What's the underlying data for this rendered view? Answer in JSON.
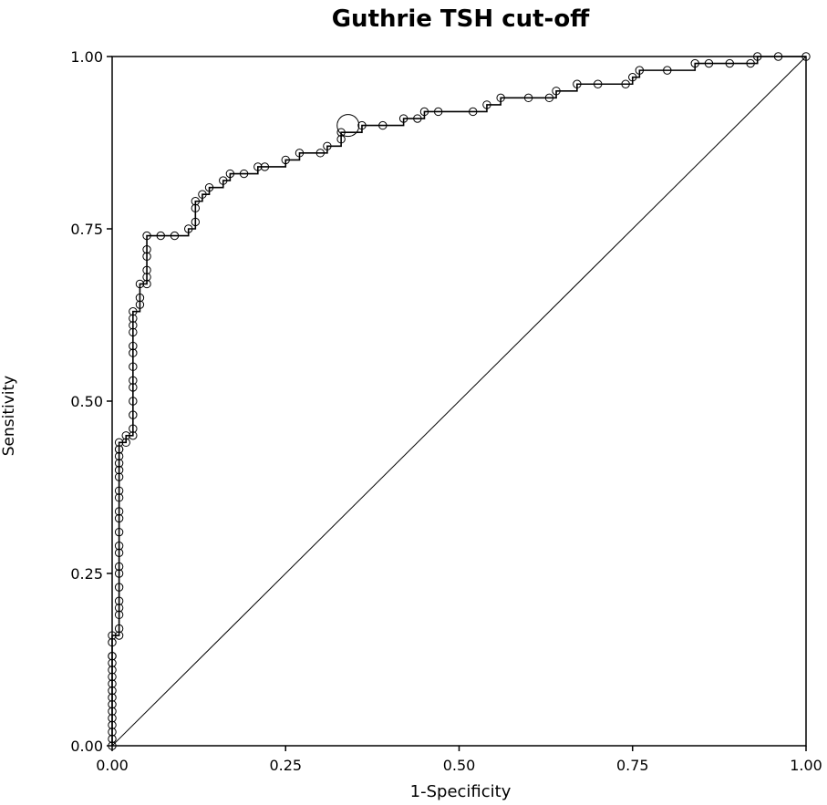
{
  "chart_data": {
    "type": "line",
    "title": "Guthrie TSH cut-off",
    "xlabel": "1-Specificity",
    "ylabel": "Sensitivity",
    "xlim": [
      0,
      1
    ],
    "ylim": [
      0,
      1
    ],
    "x_ticks": [
      "0.00",
      "0.25",
      "0.50",
      "0.75",
      "1.00"
    ],
    "y_ticks": [
      "0.00",
      "0.25",
      "0.50",
      "0.75",
      "1.00"
    ],
    "grid": false,
    "legend": "none",
    "marker": "open-circle",
    "highlighted_point": {
      "x": 0.34,
      "y": 0.9
    },
    "reference_line": {
      "x": [
        0,
        1
      ],
      "y": [
        0,
        1
      ]
    },
    "series": [
      {
        "x": [
          0.0,
          0.0,
          0.0,
          0.0,
          0.0,
          0.0,
          0.0,
          0.0,
          0.0,
          0.0,
          0.0,
          0.0,
          0.0,
          0.0,
          0.0,
          0.0,
          0.0,
          0.01,
          0.01,
          0.01,
          0.01,
          0.01,
          0.01,
          0.01,
          0.01,
          0.01,
          0.01,
          0.01,
          0.01,
          0.01,
          0.01,
          0.01,
          0.01,
          0.01,
          0.01,
          0.01,
          0.01,
          0.01,
          0.01,
          0.02,
          0.02,
          0.03,
          0.03,
          0.03,
          0.03,
          0.03,
          0.03,
          0.03,
          0.03,
          0.03,
          0.03,
          0.03,
          0.03,
          0.03,
          0.04,
          0.04,
          0.04,
          0.05,
          0.05,
          0.05,
          0.05,
          0.05,
          0.05,
          0.07,
          0.09,
          0.11,
          0.12,
          0.12,
          0.12,
          0.13,
          0.14,
          0.16,
          0.17,
          0.19,
          0.21,
          0.22,
          0.25,
          0.27,
          0.3,
          0.31,
          0.33,
          0.33,
          0.36,
          0.39,
          0.42,
          0.44,
          0.45,
          0.47,
          0.52,
          0.54,
          0.56,
          0.6,
          0.63,
          0.64,
          0.67,
          0.7,
          0.74,
          0.75,
          0.76,
          0.8,
          0.84,
          0.86,
          0.89,
          0.92,
          0.93,
          0.96,
          1.0
        ],
        "y": [
          0.0,
          0.01,
          0.02,
          0.03,
          0.04,
          0.05,
          0.06,
          0.07,
          0.08,
          0.09,
          0.1,
          0.11,
          0.12,
          0.13,
          0.13,
          0.15,
          0.16,
          0.16,
          0.17,
          0.19,
          0.2,
          0.21,
          0.23,
          0.25,
          0.26,
          0.28,
          0.29,
          0.31,
          0.33,
          0.34,
          0.36,
          0.37,
          0.39,
          0.4,
          0.41,
          0.42,
          0.43,
          0.43,
          0.44,
          0.44,
          0.45,
          0.45,
          0.46,
          0.48,
          0.5,
          0.52,
          0.53,
          0.55,
          0.57,
          0.58,
          0.6,
          0.61,
          0.62,
          0.63,
          0.64,
          0.65,
          0.67,
          0.67,
          0.68,
          0.69,
          0.71,
          0.72,
          0.74,
          0.74,
          0.74,
          0.75,
          0.76,
          0.78,
          0.79,
          0.8,
          0.81,
          0.82,
          0.83,
          0.83,
          0.84,
          0.84,
          0.85,
          0.86,
          0.86,
          0.87,
          0.88,
          0.89,
          0.9,
          0.9,
          0.91,
          0.91,
          0.92,
          0.92,
          0.92,
          0.93,
          0.94,
          0.94,
          0.94,
          0.95,
          0.96,
          0.96,
          0.96,
          0.97,
          0.98,
          0.98,
          0.99,
          0.99,
          0.99,
          0.99,
          1.0,
          1.0,
          1.0
        ]
      }
    ]
  }
}
